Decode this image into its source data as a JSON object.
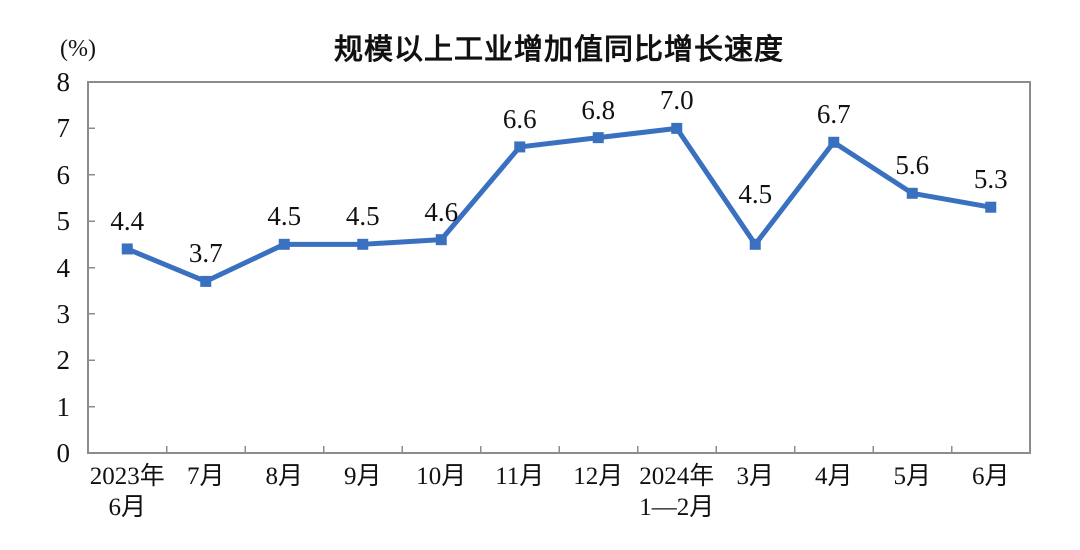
{
  "chart_data": {
    "type": "line",
    "title": "规模以上工业增加值同比增长速度",
    "ylabel": "(%)",
    "xlabel": "",
    "categories": [
      [
        "2023年",
        "6月"
      ],
      [
        "7月"
      ],
      [
        "8月"
      ],
      [
        "9月"
      ],
      [
        "10月"
      ],
      [
        "11月"
      ],
      [
        "12月"
      ],
      [
        "2024年",
        "1—2月"
      ],
      [
        "3月"
      ],
      [
        "4月"
      ],
      [
        "5月"
      ],
      [
        "6月"
      ]
    ],
    "values": [
      4.4,
      3.7,
      4.5,
      4.5,
      4.6,
      6.6,
      6.8,
      7.0,
      4.5,
      6.7,
      5.6,
      5.3
    ],
    "ylim": [
      0,
      8
    ],
    "y_ticks": [
      0,
      1,
      2,
      3,
      4,
      5,
      6,
      7,
      8
    ],
    "grid": false,
    "legend": "none",
    "marker": "square",
    "line_color": "#3A70C0",
    "border_color": "#8C8C8C",
    "label_color": "#111111"
  }
}
